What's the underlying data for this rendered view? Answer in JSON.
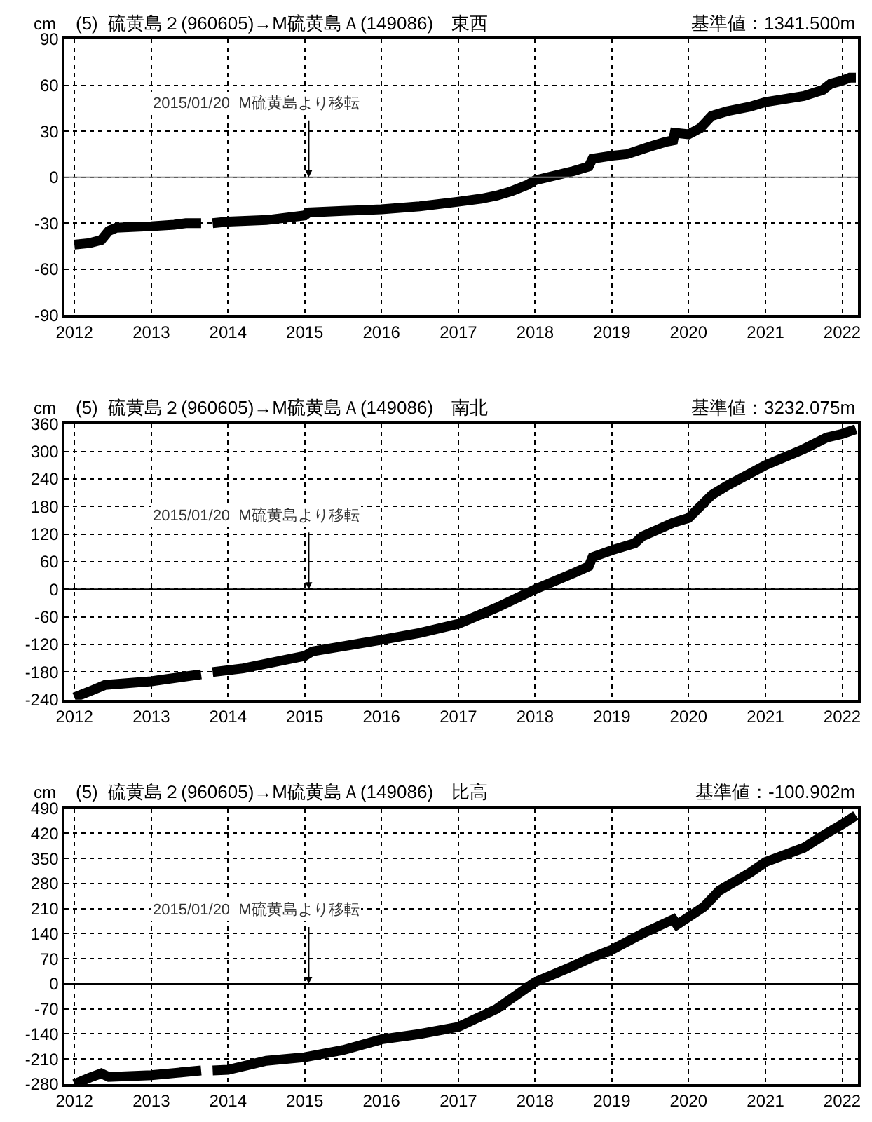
{
  "chart_data": [
    {
      "type": "line",
      "title": "(5)  硫黄島２(960605)→M硫黄島Ａ(149086)　東西",
      "subtitle": "基準値：1341.500m",
      "ylabel": "cm",
      "x": [
        "2012-01-01",
        "2012-03-14",
        "2012-05-08",
        "2012-06-13",
        "2012-07-19",
        "2013-01-01",
        "2013-04-20",
        "2013-06-14",
        "2013-08-26",
        "2013-09-20",
        "2013-10-20",
        "2014-01-01",
        "2014-07-02",
        "2015-01-01",
        "2015-01-20",
        "2015-07-02",
        "2016-01-01",
        "2016-07-01",
        "2017-01-01",
        "2017-04-20",
        "2017-07-02",
        "2017-09-13",
        "2017-11-25",
        "2018-01-01",
        "2018-07-02",
        "2018-09-13",
        "2018-10-01",
        "2019-01-01",
        "2019-03-14",
        "2019-07-02",
        "2019-09-13",
        "2019-10-20",
        "2019-10-27",
        "2020-01-01",
        "2020-02-25",
        "2020-04-20",
        "2020-07-01",
        "2020-10-19",
        "2021-01-01",
        "2021-07-02",
        "2021-10-01",
        "2021-11-07",
        "2022-01-01",
        "2022-02-06",
        "2022-03-07"
      ],
      "series": [
        {
          "color": "#000000",
          "values": [
            -44,
            -43,
            -41,
            -35,
            -33,
            -32,
            -31,
            -30,
            -30,
            null,
            -30,
            -29,
            -28,
            -25,
            -23,
            -22,
            -21,
            -19,
            -16,
            -14,
            -12,
            -9,
            -5,
            -2,
            4,
            7,
            12,
            14,
            15,
            20,
            23,
            24,
            29,
            28,
            32,
            40,
            43,
            46,
            49,
            53,
            57,
            61,
            63,
            65,
            65
          ]
        }
      ],
      "xlim": [
        "2011-11-15",
        "2022-03-17"
      ],
      "xticks": [
        "2012",
        "2013",
        "2014",
        "2015",
        "2016",
        "2017",
        "2018",
        "2019",
        "2020",
        "2021",
        "2022"
      ],
      "ylim": [
        -90,
        90
      ],
      "yticks": [
        -90,
        -60,
        -30,
        0,
        30,
        60,
        90
      ],
      "ref_lines": [
        {
          "axis": "y",
          "value": 0,
          "color": "#808080"
        }
      ],
      "annotations": [
        {
          "text": "2015/01/20  M硫黄島より移転",
          "x": "2015-01-20",
          "y": 0
        }
      ],
      "grid": true,
      "line_style": "solid",
      "marker": "none"
    },
    {
      "type": "line",
      "title": "(5)  硫黄島２(960605)→M硫黄島Ａ(149086)　南北",
      "subtitle": "基準値：3232.075m",
      "ylabel": "cm",
      "x": [
        "2012-01-01",
        "2012-03-14",
        "2012-05-26",
        "2013-01-01",
        "2013-08-26",
        "2013-09-20",
        "2013-10-20",
        "2014-03-14",
        "2015-01-01",
        "2015-02-06",
        "2016-01-01",
        "2016-07-01",
        "2017-01-01",
        "2017-07-02",
        "2018-01-01",
        "2018-07-02",
        "2018-09-13",
        "2018-10-01",
        "2019-01-01",
        "2019-04-20",
        "2019-05-26",
        "2019-10-20",
        "2020-01-01",
        "2020-04-20",
        "2020-07-01",
        "2021-01-01",
        "2021-07-02",
        "2021-10-19",
        "2022-01-01",
        "2022-03-07"
      ],
      "series": [
        {
          "color": "#000000",
          "values": [
            -235,
            -222,
            -208,
            -200,
            -185,
            null,
            -180,
            -172,
            -145,
            -135,
            -110,
            -95,
            -75,
            -40,
            0,
            35,
            50,
            70,
            85,
            100,
            115,
            145,
            155,
            205,
            225,
            270,
            305,
            330,
            338,
            348
          ]
        }
      ],
      "xlim": [
        "2011-11-15",
        "2022-03-17"
      ],
      "xticks": [
        "2012",
        "2013",
        "2014",
        "2015",
        "2016",
        "2017",
        "2018",
        "2019",
        "2020",
        "2021",
        "2022"
      ],
      "ylim": [
        -240,
        360
      ],
      "yticks": [
        -240,
        -180,
        -120,
        -60,
        0,
        60,
        120,
        180,
        240,
        300,
        360
      ],
      "ref_lines": [
        {
          "axis": "y",
          "value": 0,
          "color": "#000000"
        }
      ],
      "annotations": [
        {
          "text": "2015/01/20  M硫黄島より移転",
          "x": "2015-01-20",
          "y": 0
        }
      ],
      "grid": true,
      "line_style": "solid",
      "marker": "none"
    },
    {
      "type": "line",
      "title": "(5)  硫黄島２(960605)→M硫黄島Ａ(149086)　比高",
      "subtitle": "基準値：-100.902m",
      "ylabel": "cm",
      "x": [
        "2012-01-01",
        "2012-03-14",
        "2012-05-08",
        "2012-06-13",
        "2013-01-01",
        "2013-08-26",
        "2013-09-20",
        "2013-10-20",
        "2014-01-01",
        "2014-07-02",
        "2015-01-01",
        "2015-07-02",
        "2016-01-01",
        "2016-07-01",
        "2017-01-01",
        "2017-07-02",
        "2018-01-01",
        "2018-07-02",
        "2018-09-13",
        "2019-01-01",
        "2019-05-26",
        "2019-10-20",
        "2019-11-07",
        "2020-03-14",
        "2020-05-26",
        "2020-10-19",
        "2021-01-01",
        "2021-07-02",
        "2021-10-19",
        "2022-01-01",
        "2022-03-07"
      ],
      "series": [
        {
          "color": "#000000",
          "values": [
            -280,
            -262,
            -250,
            -260,
            -255,
            -242,
            null,
            -242,
            -240,
            -215,
            -205,
            -185,
            -155,
            -140,
            -120,
            -70,
            5,
            50,
            70,
            95,
            140,
            180,
            165,
            215,
            260,
            310,
            340,
            380,
            420,
            445,
            470
          ]
        }
      ],
      "xlim": [
        "2011-11-15",
        "2022-03-17"
      ],
      "xticks": [
        "2012",
        "2013",
        "2014",
        "2015",
        "2016",
        "2017",
        "2018",
        "2019",
        "2020",
        "2021",
        "2022"
      ],
      "ylim": [
        -280,
        490
      ],
      "yticks": [
        -280,
        -210,
        -140,
        -70,
        0,
        70,
        140,
        210,
        280,
        350,
        420,
        490
      ],
      "ref_lines": [
        {
          "axis": "y",
          "value": 0,
          "color": "#000000"
        }
      ],
      "annotations": [
        {
          "text": "2015/01/20  M硫黄島より移転",
          "x": "2015-01-20",
          "y": 0
        }
      ],
      "grid": true,
      "line_style": "solid",
      "marker": "none"
    }
  ]
}
